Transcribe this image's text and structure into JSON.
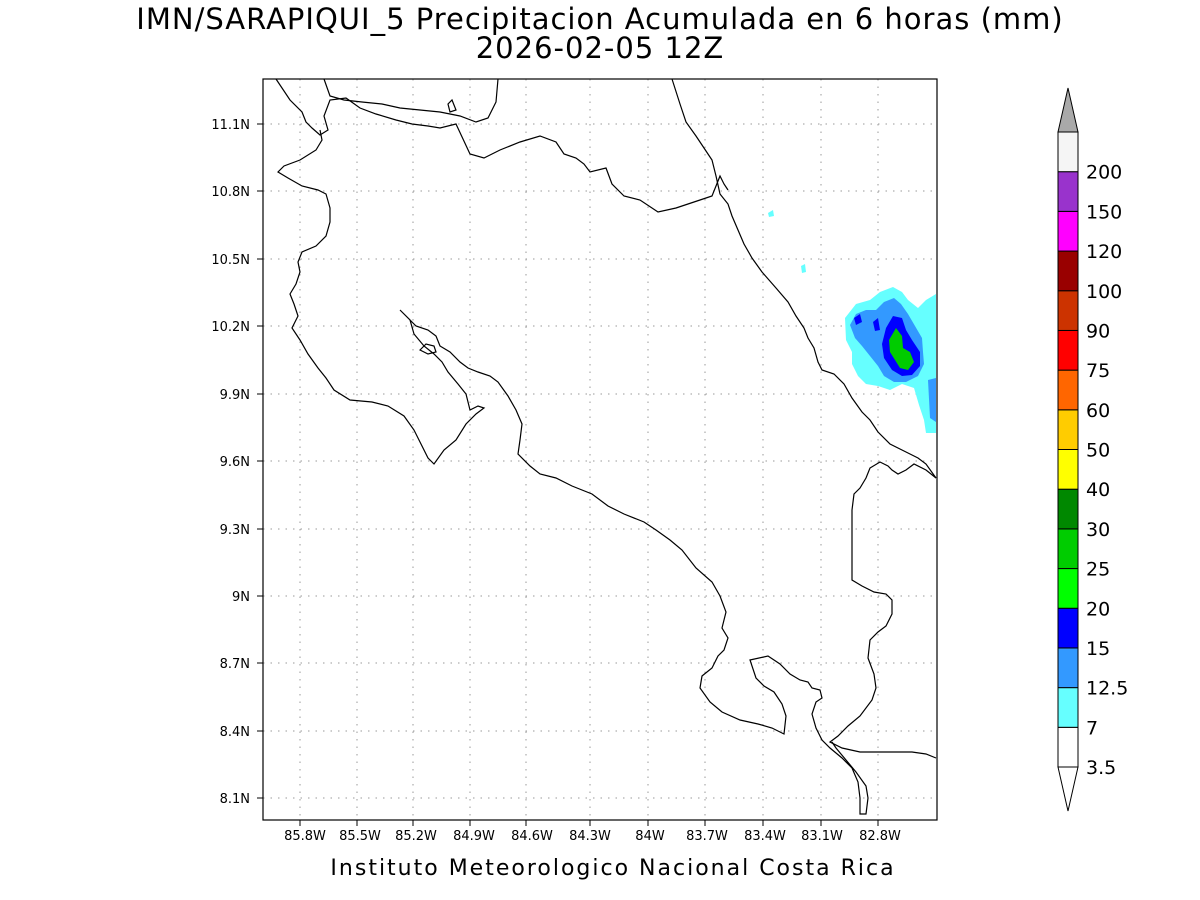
{
  "title": "IMN/SARAPIQUI_5 Precipitacion Acumulada en 6 horas (mm)",
  "subtitle": "2026-02-05 12Z",
  "footer": "Instituto Meteorologico Nacional Costa Rica",
  "map": {
    "lon_range": [
      -86.03,
      -82.58
    ],
    "lat_range": [
      8.01,
      11.34
    ],
    "lon_ticks": [
      "85.8W",
      "85.5W",
      "85.2W",
      "84.9W",
      "84.6W",
      "84.3W",
      "84W",
      "83.7W",
      "83.4W",
      "83.1W",
      "82.8W"
    ],
    "lat_ticks": [
      "11.1N",
      "10.8N",
      "10.5N",
      "10.2N",
      "9.9N",
      "9.6N",
      "9.3N",
      "9N",
      "8.7N",
      "8.4N",
      "8.1N"
    ],
    "grid": true
  },
  "colorbar": {
    "labels": [
      "3.5",
      "7",
      "12.5",
      "15",
      "20",
      "25",
      "30",
      "40",
      "50",
      "60",
      "75",
      "90",
      "100",
      "120",
      "150",
      "200"
    ],
    "colors": [
      "#ffffff",
      "#66ffff",
      "#3399ff",
      "#0000ff",
      "#00ff00",
      "#00cc00",
      "#008800",
      "#ffff00",
      "#ffcc00",
      "#ff6600",
      "#ff0000",
      "#cc3300",
      "#990000",
      "#ff00ff",
      "#9933cc",
      "#f5f5f5"
    ],
    "top_arrow_color": "#a9a9a9",
    "bottom_arrow_color": "#ffffff"
  },
  "precip_colors": {
    "light": "#66ffff",
    "moderate": "#3399ff",
    "heavy": "#0000ff",
    "intense": "#00cc00"
  }
}
